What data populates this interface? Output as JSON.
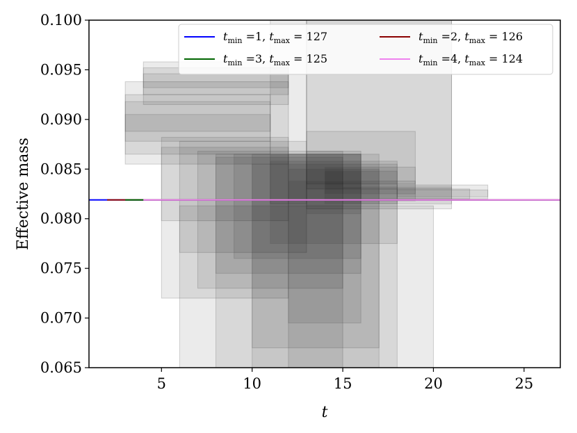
{
  "chart_data": {
    "type": "line",
    "xlabel": "t",
    "ylabel": "Effective mass",
    "xlim": [
      1,
      27
    ],
    "ylim": [
      0.065,
      0.1
    ],
    "xticks": [
      "5",
      "10",
      "15",
      "20",
      "25"
    ],
    "yticks": [
      "0.065",
      "0.070",
      "0.075",
      "0.080",
      "0.085",
      "0.090",
      "0.095",
      "0.100"
    ],
    "grid": false,
    "legend_position": "top-right",
    "series": [
      {
        "name": "t_min =1, t_max = 127",
        "t_min": "1",
        "t_max": "127",
        "color": "#0000ff",
        "y": 0.0819,
        "x_start": 1
      },
      {
        "name": "t_min =2, t_max = 126",
        "t_min": "2",
        "t_max": "126",
        "color": "#8b0000",
        "y": 0.0819,
        "x_start": 2
      },
      {
        "name": "t_min =3, t_max = 125",
        "t_min": "3",
        "t_max": "125",
        "color": "#006400",
        "y": 0.0819,
        "x_start": 3
      },
      {
        "name": "t_min =4, t_max = 124",
        "t_min": "4",
        "t_max": "124",
        "color": "#ee82ee",
        "y": 0.0819,
        "x_start": 4
      }
    ],
    "fit_windows": [
      {
        "x": [
          3,
          12
        ],
        "y": [
          0.0855,
          0.0938
        ]
      },
      {
        "x": [
          3,
          11
        ],
        "y": [
          0.0865,
          0.0925
        ]
      },
      {
        "x": [
          3,
          11
        ],
        "y": [
          0.0878,
          0.0918
        ]
      },
      {
        "x": [
          3,
          11
        ],
        "y": [
          0.0888,
          0.0905
        ]
      },
      {
        "x": [
          4,
          12
        ],
        "y": [
          0.0915,
          0.0958
        ]
      },
      {
        "x": [
          4,
          12
        ],
        "y": [
          0.0925,
          0.0952
        ]
      },
      {
        "x": [
          4,
          12
        ],
        "y": [
          0.0932,
          0.0946
        ]
      },
      {
        "x": [
          11,
          13
        ],
        "y": [
          0.0815,
          0.1
        ]
      },
      {
        "x": [
          13,
          21
        ],
        "y": [
          0.081,
          0.1
        ]
      },
      {
        "x": [
          13,
          21
        ],
        "y": [
          0.083,
          0.1
        ]
      },
      {
        "x": [
          13,
          19
        ],
        "y": [
          0.0835,
          0.0888
        ]
      },
      {
        "x": [
          5,
          12
        ],
        "y": [
          0.072,
          0.0882
        ]
      },
      {
        "x": [
          5,
          12
        ],
        "y": [
          0.0798,
          0.0872
        ]
      },
      {
        "x": [
          6,
          13
        ],
        "y": [
          0.0766,
          0.0878
        ]
      },
      {
        "x": [
          6,
          20
        ],
        "y": [
          0.065,
          0.0813
        ]
      },
      {
        "x": [
          7,
          15
        ],
        "y": [
          0.073,
          0.0868
        ]
      },
      {
        "x": [
          8,
          15
        ],
        "y": [
          0.065,
          0.0862
        ]
      },
      {
        "x": [
          8,
          16
        ],
        "y": [
          0.0745,
          0.0865
        ]
      },
      {
        "x": [
          9,
          16
        ],
        "y": [
          0.076,
          0.0865
        ]
      },
      {
        "x": [
          10,
          17
        ],
        "y": [
          0.067,
          0.0865
        ]
      },
      {
        "x": [
          10,
          18
        ],
        "y": [
          0.065,
          0.0855
        ]
      },
      {
        "x": [
          11,
          18
        ],
        "y": [
          0.0775,
          0.0858
        ]
      },
      {
        "x": [
          12,
          17
        ],
        "y": [
          0.065,
          0.085
        ]
      },
      {
        "x": [
          12,
          16
        ],
        "y": [
          0.0695,
          0.0865
        ]
      },
      {
        "x": [
          13,
          16
        ],
        "y": [
          0.0805,
          0.0868
        ]
      },
      {
        "x": [
          14,
          18
        ],
        "y": [
          0.0815,
          0.0848
        ]
      },
      {
        "x": [
          12,
          19
        ],
        "y": [
          0.0818,
          0.0838
        ]
      },
      {
        "x": [
          15,
          21
        ],
        "y": [
          0.0815,
          0.0832
        ]
      },
      {
        "x": [
          16,
          22
        ],
        "y": [
          0.082,
          0.083
        ]
      },
      {
        "x": [
          18,
          23
        ],
        "y": [
          0.082,
          0.0834
        ]
      },
      {
        "x": [
          18,
          23
        ],
        "y": [
          0.0822,
          0.0829
        ]
      },
      {
        "x": [
          14,
          19
        ],
        "y": [
          0.0825,
          0.0852
        ]
      }
    ]
  }
}
